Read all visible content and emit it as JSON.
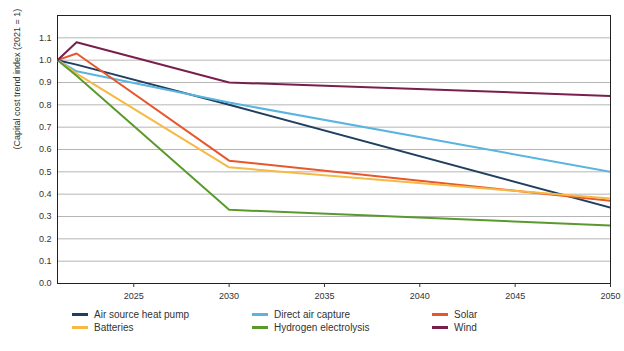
{
  "chart_data": {
    "type": "line",
    "y_label": "(Capital cost trend index (2021 = 1)",
    "x": [
      2021,
      2022,
      2030,
      2050
    ],
    "series": [
      {
        "name": "Air source heat pump",
        "color": "#1f3f5f",
        "values": [
          1.0,
          0.98,
          0.8,
          0.34
        ]
      },
      {
        "name": "Direct air capture",
        "color": "#5ab4e0",
        "values": [
          1.0,
          0.95,
          0.81,
          0.5
        ]
      },
      {
        "name": "Solar",
        "color": "#e8572c",
        "values": [
          1.0,
          1.03,
          0.55,
          0.37
        ]
      },
      {
        "name": "Batteries",
        "color": "#f6b943",
        "values": [
          1.0,
          0.94,
          0.52,
          0.38
        ]
      },
      {
        "name": "Hydrogen electrolysis",
        "color": "#5a9a2d",
        "values": [
          1.0,
          0.93,
          0.33,
          0.26
        ]
      },
      {
        "name": "Wind",
        "color": "#7a1e4e",
        "values": [
          1.0,
          1.08,
          0.9,
          0.84
        ]
      }
    ],
    "xlim": [
      2021,
      2050
    ],
    "xticks": [
      2025,
      2030,
      2035,
      2040,
      2045,
      2050
    ],
    "ylim": [
      0,
      1.2
    ],
    "yticks": [
      {
        "value": 0,
        "label": "0.0"
      },
      0.1,
      0.2,
      0.3,
      0.4,
      0.5,
      0.6,
      0.7,
      0.8,
      0.9,
      {
        "value": 1,
        "label": "1.0"
      },
      1.1
    ],
    "grid": true,
    "legend": "bottom"
  }
}
